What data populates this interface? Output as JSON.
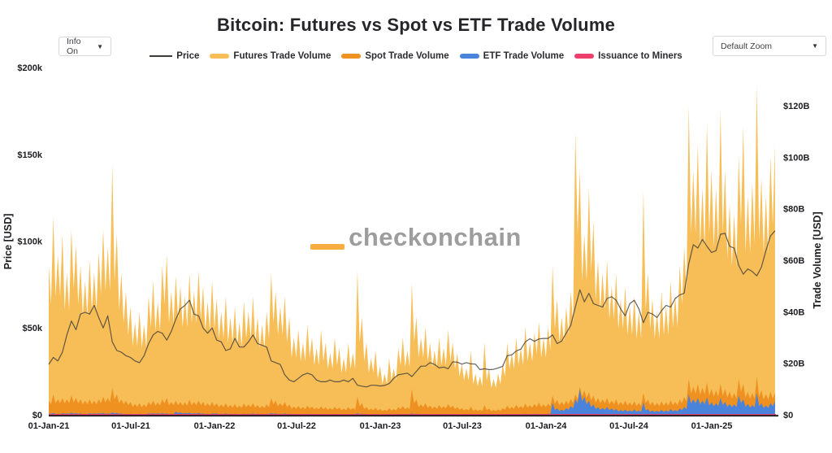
{
  "header": {
    "title": "Bitcoin: Futures vs Spot vs ETF Trade Volume",
    "info_dropdown": {
      "label": "Info On",
      "arrow": "▼"
    },
    "zoom_dropdown": {
      "label": "Default Zoom",
      "arrow": "▼"
    }
  },
  "legend": {
    "items": [
      {
        "label": "Price"
      },
      {
        "label": "Futures Trade Volume"
      },
      {
        "label": "Spot Trade Volume"
      },
      {
        "label": "ETF Trade Volume"
      },
      {
        "label": "Issuance to Miners"
      }
    ]
  },
  "watermark": {
    "text": "checkonchain",
    "bar_color": "#f8ae3f",
    "text_color": "#9d9d9d"
  },
  "axes": {
    "x": {
      "tick_labels": [
        "01-Jan-21",
        "01-Jul-21",
        "01-Jan-22",
        "01-Jul-22",
        "01-Jan-23",
        "01-Jul-23",
        "01-Jan-24",
        "01-Jul-24",
        "01-Jan-25"
      ],
      "tick_days": [
        0,
        181,
        365,
        546,
        730,
        911,
        1095,
        1277,
        1461
      ],
      "day_max": 1602
    },
    "left": {
      "title": "Price [USD]",
      "tick_labels": [
        "$0",
        "$50k",
        "$100k",
        "$150k",
        "$200k"
      ],
      "tick_values_k": [
        0,
        50,
        100,
        150,
        200
      ],
      "max_k": 200
    },
    "right": {
      "title": "Trade Volume [USD]",
      "tick_labels": [
        "$0",
        "$20B",
        "$40B",
        "$60B",
        "$80B",
        "$100B",
        "$120B"
      ],
      "tick_values_b": [
        0,
        20,
        40,
        60,
        80,
        100,
        120
      ],
      "max_b": 120
    }
  },
  "chart_data": {
    "type": "area",
    "title": "Bitcoin: Futures vs Spot vs ETF Trade Volume",
    "x_unit": "days since 01-Jan-2021, sampled every 10 days",
    "x_step_days": 10,
    "x_range_days": [
      0,
      1600
    ],
    "legend_position": "top-center",
    "grid": false,
    "series": [
      {
        "name": "Price",
        "axis": "left",
        "unit": "USD thousands",
        "style": "line",
        "color": "#3c3c38",
        "values": [
          29,
          33,
          31,
          36,
          46,
          54,
          49,
          58,
          59,
          58,
          63,
          56,
          50,
          57,
          42,
          37,
          36,
          34,
          33,
          31,
          30,
          34,
          41,
          46,
          48,
          47,
          43,
          48,
          55,
          61,
          63,
          66,
          58,
          57,
          50,
          47,
          50,
          43,
          42,
          37,
          38,
          44,
          39,
          39,
          42,
          46,
          41,
          40,
          39,
          31,
          30,
          29,
          23,
          20,
          19,
          21,
          23,
          24,
          23,
          20,
          19,
          19,
          20,
          19,
          19,
          20,
          19,
          21,
          17,
          16.5,
          16,
          17,
          17,
          16.6,
          16.9,
          18,
          21,
          23,
          23.5,
          24,
          22,
          25,
          28,
          28,
          30,
          29,
          27,
          27.5,
          26.5,
          30.5,
          30.3,
          29.2,
          30,
          29.3,
          29.2,
          26,
          26.5,
          26,
          26.2,
          27,
          27.9,
          34,
          34.5,
          36.7,
          37.8,
          42,
          43.8,
          42.3,
          43.7,
          44,
          44,
          46,
          41,
          42.5,
          47,
          51.5,
          62,
          72,
          65,
          70,
          64,
          63,
          62,
          67,
          68,
          66,
          61,
          57,
          64,
          66,
          61,
          53,
          59,
          58,
          56,
          60,
          63,
          62,
          67,
          69,
          70,
          87,
          98,
          96,
          101,
          97,
          93.5,
          94.5,
          104,
          104.5,
          97,
          96,
          86,
          81,
          84,
          82.5,
          80,
          85,
          94.5,
          103,
          106
        ]
      },
      {
        "name": "Futures Trade Volume",
        "axis": "right",
        "unit": "USD billions",
        "style": "area",
        "color": "#f7be58",
        "values": [
          58,
          77,
          62,
          70,
          55,
          72,
          66,
          58,
          52,
          60,
          55,
          63,
          72,
          65,
          97,
          70,
          55,
          48,
          42,
          36,
          40,
          35,
          46,
          52,
          44,
          58,
          62,
          48,
          54,
          50,
          46,
          55,
          48,
          56,
          50,
          44,
          52,
          45,
          40,
          46,
          38,
          42,
          36,
          44,
          40,
          46,
          38,
          35,
          40,
          55,
          48,
          42,
          46,
          38,
          30,
          33,
          28,
          35,
          30,
          26,
          33,
          28,
          24,
          30,
          26,
          22,
          28,
          24,
          56,
          38,
          28,
          22,
          25,
          19,
          16,
          22,
          18,
          26,
          30,
          25,
          51,
          38,
          30,
          34,
          28,
          25,
          30,
          26,
          33,
          28,
          24,
          20,
          18,
          25,
          16,
          15,
          28,
          18,
          14,
          16,
          20,
          28,
          24,
          30,
          26,
          34,
          28,
          32,
          36,
          30,
          34,
          58,
          45,
          38,
          42,
          48,
          110,
          95,
          70,
          88,
          75,
          60,
          55,
          60,
          50,
          55,
          45,
          50,
          42,
          46,
          40,
          87,
          55,
          45,
          40,
          48,
          42,
          52,
          46,
          58,
          65,
          120,
          95,
          105,
          88,
          113,
          95,
          88,
          118,
          95,
          82,
          78,
          100,
          112,
          85,
          90,
          128,
          92,
          85,
          100,
          105
        ]
      },
      {
        "name": "Spot Trade Volume",
        "axis": "right",
        "unit": "USD billions",
        "style": "area",
        "color": "#ee9121",
        "values": [
          5.5,
          8,
          6,
          6.5,
          6,
          7.5,
          6.5,
          6,
          5.5,
          6,
          5.5,
          6,
          7,
          6.5,
          10.5,
          8,
          6,
          5.5,
          5,
          4.2,
          4.5,
          4,
          5,
          5.5,
          4.8,
          6,
          6.5,
          5,
          5.5,
          5,
          4.8,
          5.8,
          5,
          5.5,
          5,
          4.5,
          5,
          4.5,
          4,
          4.5,
          3.8,
          4.2,
          3.6,
          4.4,
          4,
          4.5,
          3.8,
          3.5,
          4,
          6.5,
          5.5,
          4.5,
          5,
          4,
          3.2,
          3.4,
          3,
          3.6,
          3.2,
          2.8,
          3.3,
          2.9,
          2.6,
          3.1,
          2.8,
          2.4,
          3,
          2.6,
          7,
          4.5,
          3,
          2.4,
          2.7,
          2.2,
          2,
          2.6,
          2.2,
          3,
          3.4,
          2.9,
          10,
          6,
          4,
          4.5,
          3.6,
          3.2,
          3.8,
          3.3,
          4.2,
          3.6,
          3,
          2.6,
          2.3,
          3.2,
          2.1,
          2,
          3.8,
          2.4,
          1.9,
          2.1,
          2.6,
          3.6,
          3.1,
          3.9,
          3.4,
          4.4,
          3.7,
          4.2,
          4.7,
          4,
          4.4,
          7.5,
          5.8,
          5,
          5.5,
          6.2,
          8,
          11,
          9.5,
          8.8,
          7.5,
          6.5,
          6,
          6.5,
          5.5,
          6,
          5,
          5.5,
          4.8,
          5.2,
          4.6,
          8.5,
          6,
          5,
          4.6,
          5.2,
          4.8,
          5.6,
          5,
          6,
          7,
          14,
          11,
          12,
          10.5,
          12.5,
          10,
          9.5,
          12,
          10,
          9,
          8.5,
          14,
          12,
          9,
          8.5,
          15,
          9.5,
          8,
          9,
          8.5
        ]
      },
      {
        "name": "ETF Trade Volume",
        "axis": "right",
        "unit": "USD billions",
        "style": "area",
        "color": "#4a83db",
        "values": [
          0.5,
          0.7,
          0.4,
          0.6,
          0.5,
          0.8,
          0.6,
          0.5,
          0.4,
          0.6,
          0.5,
          0.6,
          0.7,
          0.5,
          0.9,
          0.7,
          0.5,
          0.4,
          0.4,
          0.3,
          0.4,
          0.3,
          0.5,
          0.6,
          0.5,
          0.6,
          0.5,
          0.4,
          1.2,
          0.9,
          0.7,
          0.8,
          0.6,
          0.7,
          0.5,
          0.4,
          0.5,
          0.5,
          0.4,
          0.5,
          0.4,
          0.4,
          0.3,
          0.4,
          0.4,
          0.5,
          0.4,
          0.3,
          0.4,
          0.6,
          0.5,
          0.4,
          0.5,
          0.4,
          0.3,
          0.3,
          0.3,
          0.4,
          0.3,
          0.3,
          0.3,
          0.3,
          0.2,
          0.3,
          0.3,
          0.2,
          0.3,
          0.3,
          0.6,
          0.4,
          0.3,
          0.2,
          0.3,
          0.2,
          0.2,
          0.3,
          0.2,
          0.3,
          0.3,
          0.3,
          0.5,
          0.4,
          0.3,
          0.3,
          0.3,
          0.2,
          0.3,
          0.3,
          0.3,
          0.3,
          0.2,
          0.2,
          0.2,
          0.3,
          0.2,
          0.2,
          0.3,
          0.2,
          0.2,
          0.2,
          0.2,
          0.3,
          0.3,
          0.3,
          0.3,
          0.4,
          0.3,
          0.4,
          0.4,
          0.3,
          0.4,
          4.6,
          2.5,
          2,
          2.6,
          3.4,
          6,
          9.9,
          7,
          5.5,
          4,
          3,
          2.6,
          3,
          2.4,
          2.2,
          1.8,
          2,
          1.7,
          2.1,
          1.6,
          4.8,
          2.2,
          1.6,
          1.5,
          1.9,
          1.6,
          2.2,
          1.8,
          2.4,
          3,
          8,
          6,
          6.5,
          5.5,
          6.8,
          4.8,
          4.5,
          6.5,
          5,
          4.2,
          4,
          7.5,
          6,
          4.2,
          3.8,
          8.5,
          4.5,
          3.6,
          4.5,
          5.2
        ]
      },
      {
        "name": "Issuance to Miners",
        "axis": "right",
        "unit": "USD billions",
        "style": "line",
        "color": "#ef3f6e",
        "points": [
          [
            0,
            0.027
          ],
          [
            100,
            0.056
          ],
          [
            138,
            0.035
          ],
          [
            200,
            0.028
          ],
          [
            313,
            0.062
          ],
          [
            365,
            0.042
          ],
          [
            500,
            0.027
          ],
          [
            650,
            0.018
          ],
          [
            730,
            0.015
          ],
          [
            900,
            0.026
          ],
          [
            1000,
            0.026
          ],
          [
            1095,
            0.04
          ],
          [
            1160,
            0.063
          ],
          [
            1200,
            0.058
          ],
          [
            1210,
            0.029
          ],
          [
            1300,
            0.027
          ],
          [
            1400,
            0.031
          ],
          [
            1450,
            0.044
          ],
          [
            1540,
            0.038
          ],
          [
            1602,
            0.047
          ]
        ]
      }
    ]
  }
}
